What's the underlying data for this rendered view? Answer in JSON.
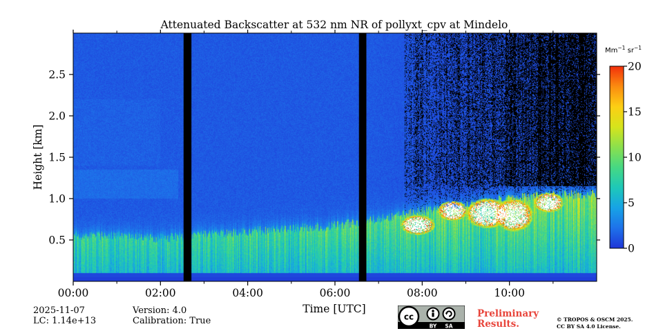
{
  "chart_data": {
    "type": "heatmap",
    "title": "Attenuated Backscatter at 532 nm NR of pollyxt_cpv at Mindelo",
    "xlabel": "Time [UTC]",
    "ylabel": "Height [km]",
    "x_range_hours": [
      0,
      12
    ],
    "y_range_km": [
      0,
      3.0
    ],
    "x_ticks": [
      {
        "value": 0,
        "label": "00:00"
      },
      {
        "value": 2,
        "label": "02:00"
      },
      {
        "value": 4,
        "label": "04:00"
      },
      {
        "value": 6,
        "label": "06:00"
      },
      {
        "value": 8,
        "label": "08:00"
      },
      {
        "value": 10,
        "label": "10:00"
      }
    ],
    "y_ticks": [
      {
        "value": 0.5,
        "label": "0.5"
      },
      {
        "value": 1.0,
        "label": "1.0"
      },
      {
        "value": 1.5,
        "label": "1.5"
      },
      {
        "value": 2.0,
        "label": "2.0"
      },
      {
        "value": 2.5,
        "label": "2.5"
      }
    ],
    "colorbar": {
      "unit_label": "Mm",
      "unit_exp1": "−1",
      "unit_mid": " sr",
      "unit_exp2": "−1",
      "range": [
        0,
        20
      ],
      "ticks": [
        {
          "value": 0,
          "label": "0"
        },
        {
          "value": 5,
          "label": "5"
        },
        {
          "value": 10,
          "label": "10"
        },
        {
          "value": 15,
          "label": "15"
        },
        {
          "value": 20,
          "label": "20"
        }
      ],
      "colormap": [
        "#1f36d8",
        "#1e72ea",
        "#17a3e6",
        "#1ec8b8",
        "#46d883",
        "#8be04d",
        "#d6e41c",
        "#fccf14",
        "#fb8c10",
        "#f2300b"
      ]
    },
    "data_gaps_hours": [
      [
        2.53,
        2.71
      ],
      [
        6.55,
        6.72
      ]
    ],
    "features": {
      "surface_band_top_km": 0.1,
      "boundary_layer_top_km_by_hour": [
        {
          "t": 0,
          "z": 0.55
        },
        {
          "t": 1,
          "z": 0.56
        },
        {
          "t": 2,
          "z": 0.52
        },
        {
          "t": 3,
          "z": 0.56
        },
        {
          "t": 4,
          "z": 0.6
        },
        {
          "t": 5,
          "z": 0.64
        },
        {
          "t": 6,
          "z": 0.67
        },
        {
          "t": 7,
          "z": 0.75
        },
        {
          "t": 8,
          "z": 0.85
        },
        {
          "t": 9,
          "z": 0.92
        },
        {
          "t": 10,
          "z": 1.0
        },
        {
          "t": 11,
          "z": 1.05
        },
        {
          "t": 12,
          "z": 1.05
        }
      ],
      "cloud_patches": [
        {
          "t": 7.9,
          "z": 0.68,
          "w": 0.4,
          "h": 0.12
        },
        {
          "t": 8.7,
          "z": 0.85,
          "w": 0.35,
          "h": 0.12
        },
        {
          "t": 9.5,
          "z": 0.82,
          "w": 0.5,
          "h": 0.18
        },
        {
          "t": 10.1,
          "z": 0.8,
          "w": 0.45,
          "h": 0.2
        },
        {
          "t": 10.9,
          "z": 0.95,
          "w": 0.35,
          "h": 0.12
        }
      ],
      "noise_region_start_hour": 7.6
    }
  },
  "footer": {
    "date": "2025-11-07",
    "lc": "LC: 1.14e+13",
    "version": "Version: 4.0",
    "calibration": "Calibration: True",
    "license_badge": {
      "cc": "cc",
      "by": "BY",
      "sa": "SA"
    },
    "preliminary_line1": "Preliminary",
    "preliminary_line2": "Results.",
    "copyright_line1": "© TROPOS & OSCM 2025.",
    "copyright_line2": "CC BY SA 4.0 License."
  }
}
